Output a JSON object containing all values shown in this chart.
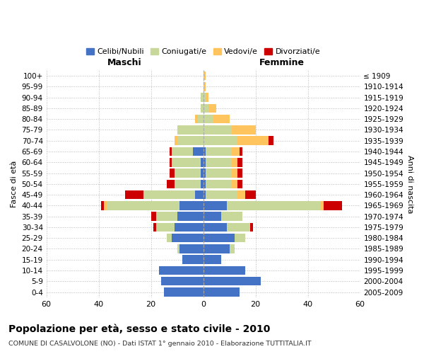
{
  "age_groups": [
    "0-4",
    "5-9",
    "10-14",
    "15-19",
    "20-24",
    "25-29",
    "30-34",
    "35-39",
    "40-44",
    "45-49",
    "50-54",
    "55-59",
    "60-64",
    "65-69",
    "70-74",
    "75-79",
    "80-84",
    "85-89",
    "90-94",
    "95-99",
    "100+"
  ],
  "birth_years": [
    "2005-2009",
    "2000-2004",
    "1995-1999",
    "1990-1994",
    "1985-1989",
    "1980-1984",
    "1975-1979",
    "1970-1974",
    "1965-1969",
    "1960-1964",
    "1955-1959",
    "1950-1954",
    "1945-1949",
    "1940-1944",
    "1935-1939",
    "1930-1934",
    "1925-1929",
    "1920-1924",
    "1915-1919",
    "1910-1914",
    "≤ 1909"
  ],
  "male_celibe": [
    15,
    16,
    17,
    8,
    9,
    12,
    11,
    10,
    9,
    3,
    1,
    1,
    1,
    4,
    0,
    0,
    0,
    0,
    0,
    0,
    0
  ],
  "male_coniugato": [
    0,
    0,
    0,
    0,
    1,
    2,
    7,
    8,
    28,
    20,
    10,
    10,
    11,
    8,
    10,
    10,
    2,
    1,
    1,
    0,
    0
  ],
  "male_vedovo": [
    0,
    0,
    0,
    0,
    0,
    0,
    0,
    0,
    1,
    0,
    0,
    0,
    0,
    0,
    1,
    0,
    1,
    0,
    0,
    0,
    0
  ],
  "male_divorziato": [
    0,
    0,
    0,
    0,
    0,
    0,
    1,
    2,
    1,
    7,
    3,
    2,
    1,
    1,
    0,
    0,
    0,
    0,
    0,
    0,
    0
  ],
  "female_celibe": [
    14,
    22,
    16,
    7,
    10,
    12,
    9,
    7,
    9,
    1,
    1,
    1,
    1,
    1,
    0,
    0,
    0,
    0,
    0,
    0,
    0
  ],
  "female_coniugato": [
    0,
    0,
    0,
    0,
    2,
    4,
    9,
    8,
    36,
    12,
    10,
    10,
    10,
    10,
    13,
    11,
    4,
    2,
    1,
    0,
    0
  ],
  "female_vedovo": [
    0,
    0,
    0,
    0,
    0,
    0,
    0,
    0,
    1,
    3,
    2,
    2,
    2,
    3,
    12,
    9,
    6,
    3,
    1,
    1,
    1
  ],
  "female_divorziato": [
    0,
    0,
    0,
    0,
    0,
    0,
    1,
    0,
    7,
    4,
    2,
    2,
    2,
    1,
    2,
    0,
    0,
    0,
    0,
    0,
    0
  ],
  "color_celibe": "#4472c4",
  "color_coniugato": "#c7d89a",
  "color_vedovo": "#ffc45e",
  "color_divorziato": "#cc0000",
  "xlim": 60,
  "title": "Popolazione per età, sesso e stato civile - 2010",
  "subtitle": "COMUNE DI CASALVOLONE (NO) - Dati ISTAT 1° gennaio 2010 - Elaborazione TUTTITALIA.IT",
  "ylabel_left": "Fasce di età",
  "ylabel_right": "Anni di nascita",
  "xlabel_maschi": "Maschi",
  "xlabel_femmine": "Femmine",
  "legend_labels": [
    "Celibi/Nubili",
    "Coniugati/e",
    "Vedovi/e",
    "Divorziati/e"
  ]
}
